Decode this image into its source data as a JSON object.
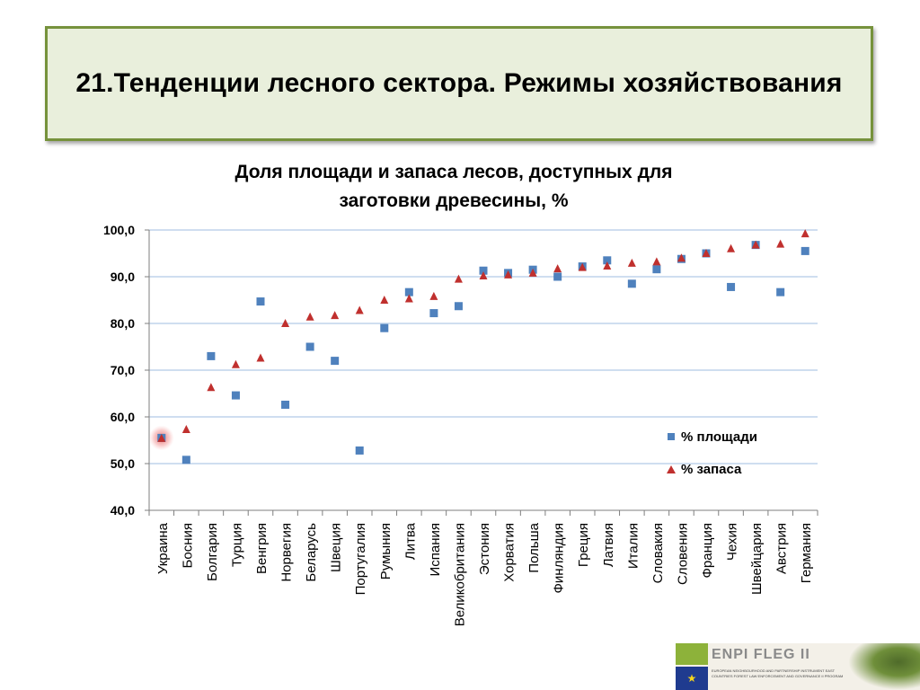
{
  "slide": {
    "title": "21.Тенденции лесного сектора.  Режимы хозяйствования"
  },
  "chart_data": {
    "type": "scatter",
    "title": "Доля площади и запаса лесов, доступных для заготовки древесины, %",
    "title_lines": [
      "Доля площади и запаса лесов, доступных для",
      "заготовки древесины, %"
    ],
    "xlabel": "",
    "ylabel": "",
    "ylim": [
      40,
      100
    ],
    "yticks": [
      "40,0",
      "50,0",
      "60,0",
      "70,0",
      "80,0",
      "90,0",
      "100,0"
    ],
    "categories": [
      "Украина",
      "Босния",
      "Болгария",
      "Турция",
      "Венгрия",
      "Норвегия",
      "Беларусь",
      "Швеция",
      "Португалия",
      "Румыния",
      "Литва",
      "Испания",
      "Великобритания",
      "Эстония",
      "Хорватия",
      "Польша",
      "Финляндия",
      "Греция",
      "Латвия",
      "Италия",
      "Словакия",
      "Словения",
      "Франция",
      "Чехия",
      "Швейцария",
      "Австрия",
      "Германия"
    ],
    "series": [
      {
        "name": "% площади",
        "marker": "square",
        "color": "#4f81bd",
        "values": [
          55.5,
          50.8,
          73.0,
          64.6,
          84.7,
          62.6,
          75.0,
          72.0,
          52.8,
          79.0,
          86.7,
          82.2,
          83.7,
          91.3,
          90.8,
          91.5,
          90.0,
          92.2,
          93.5,
          88.5,
          91.6,
          93.8,
          95.0,
          87.8,
          96.8,
          86.7,
          95.5
        ]
      },
      {
        "name": "% запаса",
        "marker": "triangle",
        "color": "#c0302e",
        "values": [
          55.4,
          57.3,
          66.3,
          71.2,
          72.6,
          80.0,
          81.4,
          81.7,
          82.8,
          85.0,
          85.3,
          85.8,
          89.5,
          90.2,
          90.4,
          90.8,
          91.7,
          92.0,
          92.3,
          92.9,
          93.2,
          94.0,
          95.0,
          96.0,
          96.8,
          97.0,
          99.2
        ]
      }
    ],
    "highlight_index": 0,
    "grid": true,
    "legend_position": "right"
  },
  "footer": {
    "logo_text": "ENPI FLEG II",
    "logo_subtext": "EUROPEAN NEIGHBOURHOOD AND PARTNERSHIP INSTRUMENT EAST COUNTRIES FOREST LAW ENFORCEMENT AND GOVERNANCE II PROGRAM"
  }
}
